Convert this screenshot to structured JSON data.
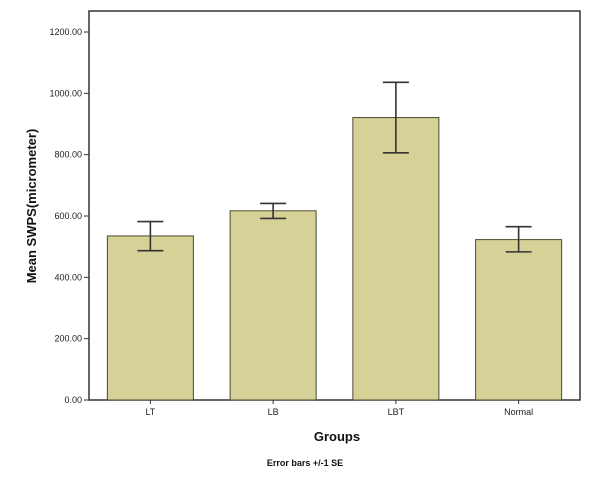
{
  "chart_data": {
    "type": "bar",
    "categories": [
      "LT",
      "LB",
      "LBT",
      "Normal"
    ],
    "values": [
      535,
      617,
      921,
      523
    ],
    "error_bars": {
      "lower": [
        487,
        592,
        806,
        483
      ],
      "upper": [
        582,
        641,
        1036,
        565
      ]
    },
    "xlabel": "Groups",
    "ylabel": "Mean SWPS(micrometer)",
    "ylim": [
      0,
      1280
    ],
    "yticks": [
      0,
      200,
      400,
      600,
      800,
      1000,
      1200
    ],
    "ytick_labels": [
      "0.00",
      "200.00",
      "400.00",
      "600.00",
      "800.00",
      "1000.00",
      "1200.00"
    ],
    "footnote": "Error bars +/-1 SE",
    "grid": false,
    "legend": "none",
    "colors": {
      "bar_fill": "#d6d197",
      "bar_stroke": "#4a4a30",
      "plot_background": "#ffffff",
      "frame": "#333333",
      "error_bar": "#333333"
    }
  }
}
